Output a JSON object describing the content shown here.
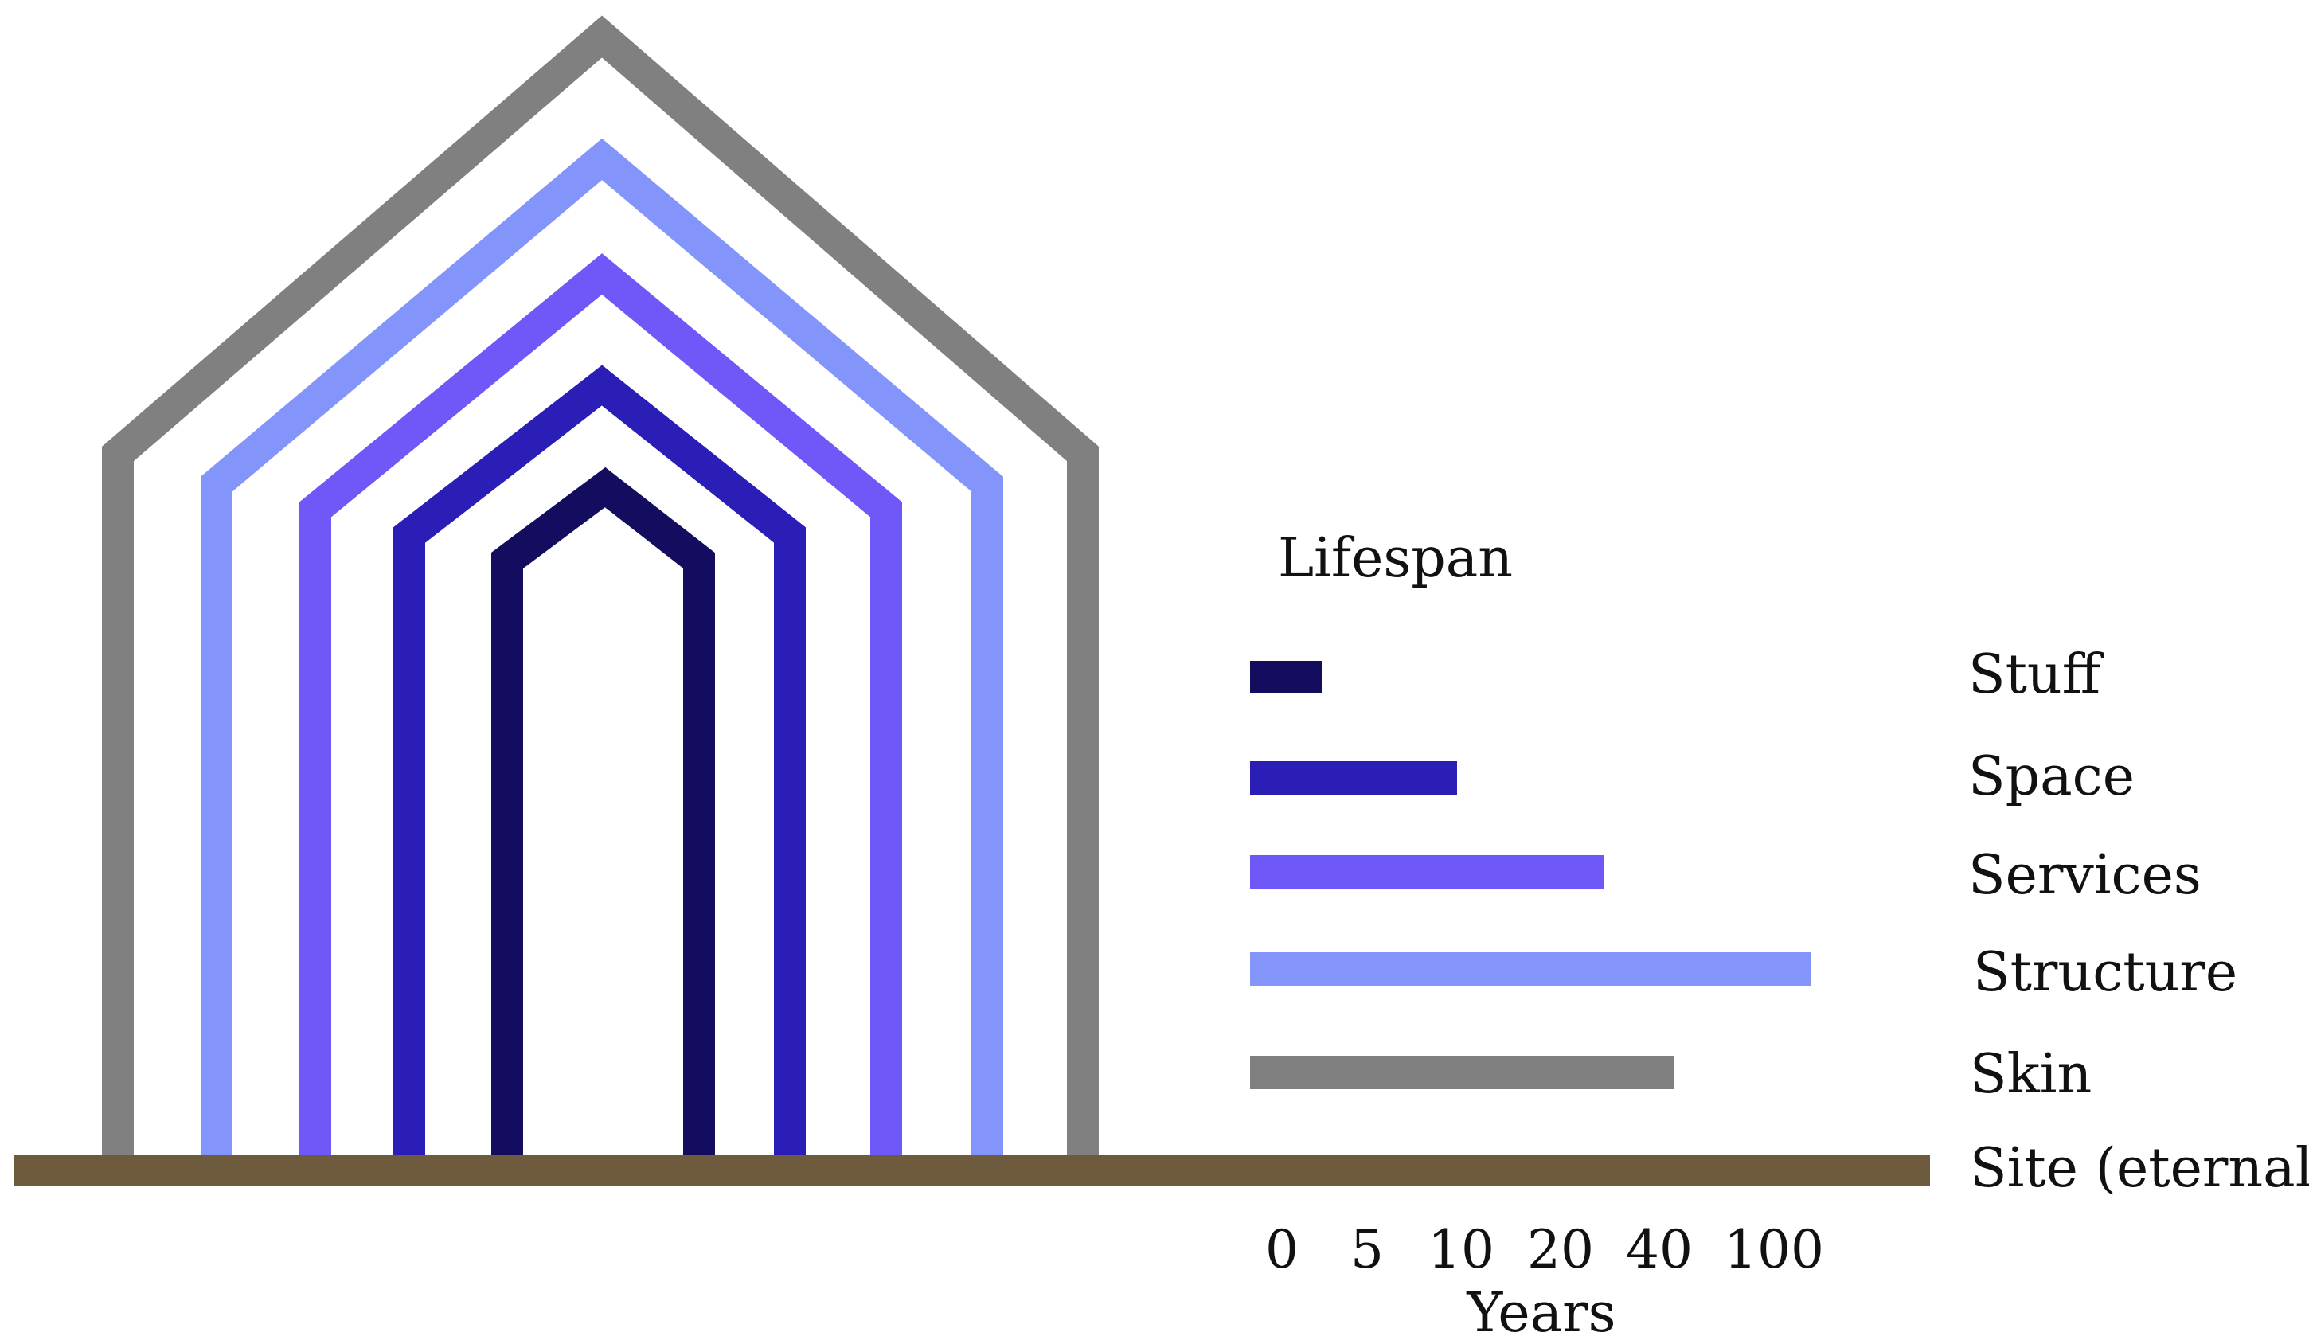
{
  "diagram": {
    "title": "Lifespan",
    "axis_label": "Years",
    "ticks": [
      "0",
      "5",
      "10",
      "20",
      "40",
      "100"
    ],
    "layers": [
      {
        "key": "stuff",
        "label": "Stuff",
        "color": "#140c5e",
        "lifespan_years": 3
      },
      {
        "key": "space",
        "label": "Space",
        "color": "#2a1eb6",
        "lifespan_years": 10
      },
      {
        "key": "services",
        "label": "Services",
        "color": "#6e58f8",
        "lifespan_years": 30
      },
      {
        "key": "structure",
        "label": "Structure",
        "color": "#8394fb",
        "lifespan_years": 100
      },
      {
        "key": "skin",
        "label": "Skin",
        "color": "#808080",
        "lifespan_years": 50
      },
      {
        "key": "site",
        "label": "Site (eternal)",
        "color": "#6e5a3c"
      }
    ]
  }
}
